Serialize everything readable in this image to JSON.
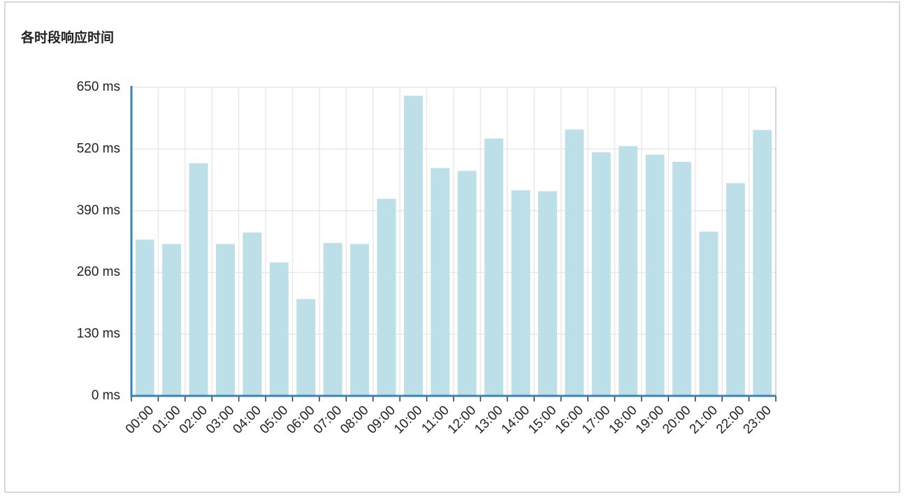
{
  "chart_data": {
    "type": "bar",
    "title": "各时段响应时间",
    "categories": [
      "00:00",
      "01:00",
      "02:00",
      "03:00",
      "04:00",
      "05:00",
      "06:00",
      "07:00",
      "08:00",
      "09:00",
      "10:00",
      "11:00",
      "12:00",
      "13:00",
      "14:00",
      "15:00",
      "16:00",
      "17:00",
      "18:00",
      "19:00",
      "20:00",
      "21:00",
      "22:00",
      "23:00"
    ],
    "values": [
      329,
      320,
      490,
      320,
      344,
      281,
      204,
      322,
      320,
      415,
      632,
      480,
      474,
      542,
      433,
      431,
      561,
      513,
      526,
      508,
      493,
      346,
      448,
      560
    ],
    "color": "#bcdfe8",
    "ylim": [
      0,
      650
    ],
    "yticks": [
      {
        "value": 0,
        "label": "0 ms"
      },
      {
        "value": 130,
        "label": "130 ms"
      },
      {
        "value": 260,
        "label": "260 ms"
      },
      {
        "value": 390,
        "label": "390 ms"
      },
      {
        "value": 520,
        "label": "520 ms"
      },
      {
        "value": 650,
        "label": "650 ms"
      }
    ],
    "grid": true
  }
}
